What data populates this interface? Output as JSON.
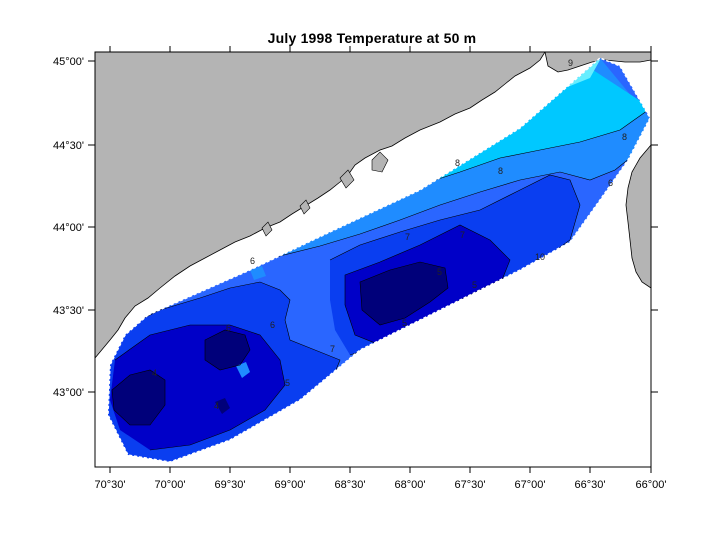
{
  "title": "July 1998  Temperature at 50 m",
  "map": {
    "land_color": "#b4b4b4",
    "water_color": "#ffffff",
    "frame_color": "#000000",
    "fill_colors": [
      "#00007a",
      "#0000c8",
      "#0a3ef0",
      "#2a66ff",
      "#1f8cff",
      "#00c8ff",
      "#66eeff"
    ],
    "lat_labels": [
      "45°00'",
      "44°30'",
      "44°00'",
      "43°30'",
      "43°00'"
    ],
    "lon_labels": [
      "70°30'",
      "70°00'",
      "69°30'",
      "69°00'",
      "68°30'",
      "68°00'",
      "67°30'",
      "67°00'",
      "66°30'",
      "66°00'"
    ],
    "contour_labels": [
      "8",
      "8",
      "8",
      "7",
      "7",
      "7",
      "6",
      "6",
      "6",
      "6",
      "5",
      "5",
      "5",
      "5",
      "4",
      "4",
      "9",
      "10"
    ]
  }
}
